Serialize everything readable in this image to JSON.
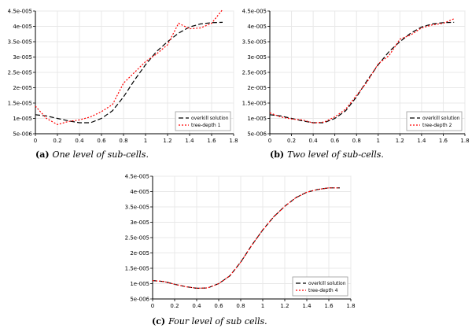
{
  "chart_data": [
    {
      "type": "line",
      "x": [
        0,
        0.1,
        0.2,
        0.3,
        0.4,
        0.5,
        0.6,
        0.7,
        0.8,
        0.9,
        1.0,
        1.1,
        1.2,
        1.3,
        1.4,
        1.5,
        1.6,
        1.7
      ],
      "xlim": [
        0,
        1.8
      ],
      "ylim": [
        5e-06,
        4.5e-05
      ],
      "xticks": [
        "0",
        "0.2",
        "0.4",
        "0.6",
        "0.8",
        "1",
        "1.2",
        "1.4",
        "1.6",
        "1.8"
      ],
      "yticks": [
        "5e-006",
        "1e-005",
        "1.5e-005",
        "2e-005",
        "2.5e-005",
        "3e-005",
        "3.5e-005",
        "4e-005",
        "4.5e-005"
      ],
      "legend_position": "bottom-right",
      "series": [
        {
          "name": "overkill solution",
          "color": "#000000",
          "dash": "dashed",
          "values": [
            1.12e-05,
            1.08e-05,
            1e-05,
            9.2e-06,
            8.6e-06,
            8.6e-06,
            1e-05,
            1.25e-05,
            1.7e-05,
            2.25e-05,
            2.75e-05,
            3.18e-05,
            3.5e-05,
            3.78e-05,
            3.98e-05,
            4.08e-05,
            4.12e-05,
            4.13e-05
          ]
        },
        {
          "name": "tree-depth 1",
          "color": "#ff0000",
          "dash": "dotted",
          "values": [
            1.4e-05,
            1e-05,
            8e-06,
            9e-06,
            9.5e-06,
            1.05e-05,
            1.22e-05,
            1.45e-05,
            2.15e-05,
            2.5e-05,
            2.85e-05,
            3.1e-05,
            3.4e-05,
            4.1e-05,
            3.92e-05,
            3.95e-05,
            4.1e-05,
            4.55e-05
          ]
        }
      ],
      "caption": {
        "label": "(a)",
        "text": "One level of sub-cells."
      }
    },
    {
      "type": "line",
      "x": [
        0,
        0.1,
        0.2,
        0.3,
        0.4,
        0.5,
        0.6,
        0.7,
        0.8,
        0.9,
        1.0,
        1.1,
        1.2,
        1.3,
        1.4,
        1.5,
        1.6,
        1.7
      ],
      "xlim": [
        0,
        1.8
      ],
      "ylim": [
        5e-06,
        4.5e-05
      ],
      "xticks": [
        "0",
        "0.2",
        "0.4",
        "0.6",
        "0.8",
        "1",
        "1.2",
        "1.4",
        "1.6",
        "1.8"
      ],
      "yticks": [
        "5e-006",
        "1e-005",
        "1.5e-005",
        "2e-005",
        "2.5e-005",
        "3e-005",
        "3.5e-005",
        "4e-005",
        "4.5e-005"
      ],
      "legend_position": "bottom-right",
      "series": [
        {
          "name": "overkill solution",
          "color": "#000000",
          "dash": "dashed",
          "values": [
            1.12e-05,
            1.08e-05,
            1e-05,
            9.2e-06,
            8.6e-06,
            8.6e-06,
            1e-05,
            1.25e-05,
            1.7e-05,
            2.25e-05,
            2.75e-05,
            3.18e-05,
            3.5e-05,
            3.78e-05,
            3.98e-05,
            4.08e-05,
            4.12e-05,
            4.13e-05
          ]
        },
        {
          "name": "tree-depth 2",
          "color": "#ff0000",
          "dash": "dotted",
          "values": [
            1.18e-05,
            1.05e-05,
            9.8e-06,
            9.5e-06,
            8.5e-06,
            8.8e-06,
            1.05e-05,
            1.3e-05,
            1.75e-05,
            2.2e-05,
            2.78e-05,
            3.05e-05,
            3.58e-05,
            3.72e-05,
            3.95e-05,
            4.05e-05,
            4.1e-05,
            4.25e-05
          ]
        }
      ],
      "caption": {
        "label": "(b)",
        "text": "Two level of sub-cells."
      }
    },
    {
      "type": "line",
      "x": [
        0,
        0.1,
        0.2,
        0.3,
        0.4,
        0.5,
        0.6,
        0.7,
        0.8,
        0.9,
        1.0,
        1.1,
        1.2,
        1.3,
        1.4,
        1.5,
        1.6,
        1.7
      ],
      "xlim": [
        0,
        1.8
      ],
      "ylim": [
        5e-06,
        4.5e-05
      ],
      "xticks": [
        "0",
        "0.2",
        "0.4",
        "0.6",
        "0.8",
        "1",
        "1.2",
        "1.4",
        "1.6",
        "1.8"
      ],
      "yticks": [
        "5e-006",
        "1e-005",
        "1.5e-005",
        "2e-005",
        "2.5e-005",
        "3e-005",
        "3.5e-005",
        "4e-005",
        "4.5e-005"
      ],
      "legend_position": "bottom-right",
      "series": [
        {
          "name": "overkill solution",
          "color": "#000000",
          "dash": "dashed",
          "values": [
            1.1e-05,
            1.07e-05,
            9.8e-06,
            9e-06,
            8.5e-06,
            8.6e-06,
            1e-05,
            1.25e-05,
            1.7e-05,
            2.25e-05,
            2.75e-05,
            3.18e-05,
            3.52e-05,
            3.8e-05,
            3.98e-05,
            4.07e-05,
            4.12e-05,
            4.12e-05
          ]
        },
        {
          "name": "tree-depth 4",
          "color": "#ff0000",
          "dash": "dotted",
          "values": [
            1.1e-05,
            1.07e-05,
            9.8e-06,
            9e-06,
            8.5e-06,
            8.6e-06,
            1e-05,
            1.25e-05,
            1.7e-05,
            2.25e-05,
            2.75e-05,
            3.18e-05,
            3.52e-05,
            3.8e-05,
            3.98e-05,
            4.07e-05,
            4.12e-05,
            4.12e-05
          ]
        }
      ],
      "caption": {
        "label": "(c)",
        "text": "Four level of sub cells."
      }
    }
  ]
}
